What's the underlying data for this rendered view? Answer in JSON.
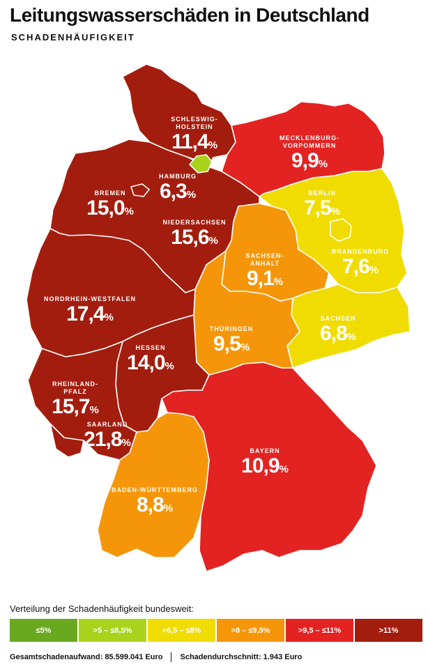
{
  "header": {
    "title": "Leitungswasserschäden in Deutschland",
    "subtitle": "SCHADENHÄUFIGKEIT"
  },
  "colors": {
    "le5": "#6aa820",
    "5_65": "#a8d21c",
    "65_8": "#f0dc00",
    "8_95": "#f5960a",
    "95_11": "#e32322",
    "gt11": "#a31d0e"
  },
  "states": [
    {
      "name": "SCHLESWIG-\nHOLSTEIN",
      "name1": "SCHLESWIG-",
      "name2": "HOLSTEIN",
      "value": "11,4",
      "unit": "%"
    },
    {
      "name1": "MECKLENBURG-",
      "name2": "VORPOMMERN",
      "value": "9,9",
      "unit": "%"
    },
    {
      "name1": "HAMBURG",
      "value": "6,3",
      "unit": "%"
    },
    {
      "name1": "BREMEN",
      "value": "15,0",
      "unit": "%"
    },
    {
      "name1": "NIEDERSACHSEN",
      "value": "15,6",
      "unit": "%"
    },
    {
      "name1": "BERLIN",
      "value": "7,5",
      "unit": "%"
    },
    {
      "name1": "BRANDENBURG",
      "value": "7,6",
      "unit": "%"
    },
    {
      "name1": "SACHSEN-",
      "name2": "ANHALT",
      "value": "9,1",
      "unit": "%"
    },
    {
      "name1": "NORDRHEIN-WESTFALEN",
      "value": "17,4",
      "unit": "%"
    },
    {
      "name1": "SACHSEN",
      "value": "6,8",
      "unit": "%"
    },
    {
      "name1": "THÜRINGEN",
      "value": "9,5",
      "unit": "%"
    },
    {
      "name1": "HESSEN",
      "value": "14,0",
      "unit": "%"
    },
    {
      "name1": "RHEINLAND-",
      "name2": "PFALZ",
      "value": "15,7",
      "unit": "%"
    },
    {
      "name1": "SAARLAND",
      "value": "21,8",
      "unit": "%"
    },
    {
      "name1": "BAYERN",
      "value": "10,9",
      "unit": "%"
    },
    {
      "name1": "BADEN-WÜRTTEMBERG",
      "value": "8,8",
      "unit": "%"
    }
  ],
  "legend": {
    "title": "Verteilung der Schadenhäufigkeit bundesweit:",
    "items": [
      "≤5%",
      ">5 – ≤6,5%",
      ">6,5 – ≤8%",
      ">8 – ≤9,5%",
      ">9,5 – ≤11%",
      ">11%"
    ]
  },
  "footer": {
    "left": "Gesamtschadenaufwand: 85.599.041 Euro",
    "right": "Schadendurchschnitt: 1.943 Euro"
  }
}
